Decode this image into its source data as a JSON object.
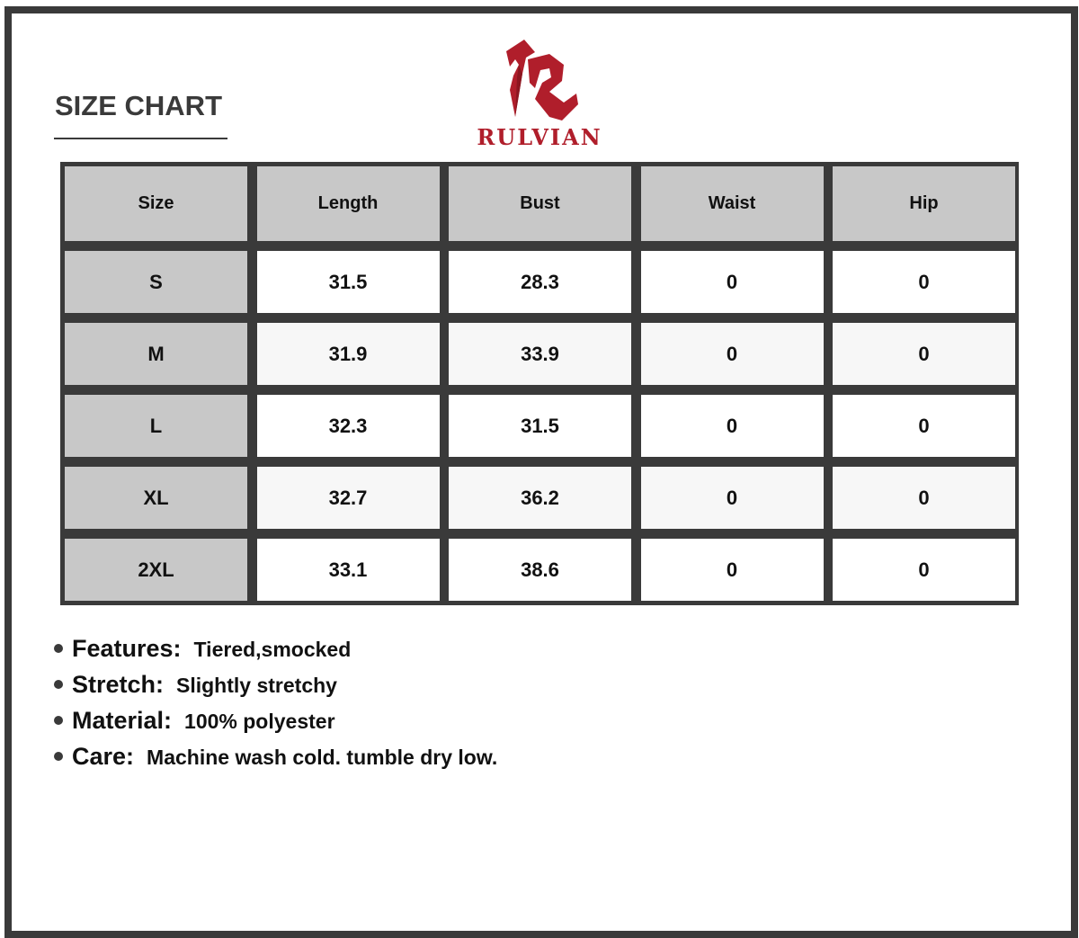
{
  "title": "SIZE CHART",
  "brand": {
    "name": "RULVIAN",
    "color": "#b01e2b"
  },
  "table": {
    "headers": [
      "Size",
      "Length",
      "Bust",
      "Waist",
      "Hip"
    ],
    "rows": [
      [
        "S",
        "31.5",
        "28.3",
        "0",
        "0"
      ],
      [
        "M",
        "31.9",
        "33.9",
        "0",
        "0"
      ],
      [
        "L",
        "32.3",
        "31.5",
        "0",
        "0"
      ],
      [
        "XL",
        "32.7",
        "36.2",
        "0",
        "0"
      ],
      [
        "2XL",
        "33.1",
        "38.6",
        "0",
        "0"
      ]
    ]
  },
  "notes": [
    {
      "label": "Features:",
      "value": "Tiered,smocked"
    },
    {
      "label": "Stretch:",
      "value": "Slightly stretchy"
    },
    {
      "label": "Material:",
      "value": "100% polyester"
    },
    {
      "label": "Care:",
      "value": "Machine wash cold. tumble dry low."
    }
  ]
}
